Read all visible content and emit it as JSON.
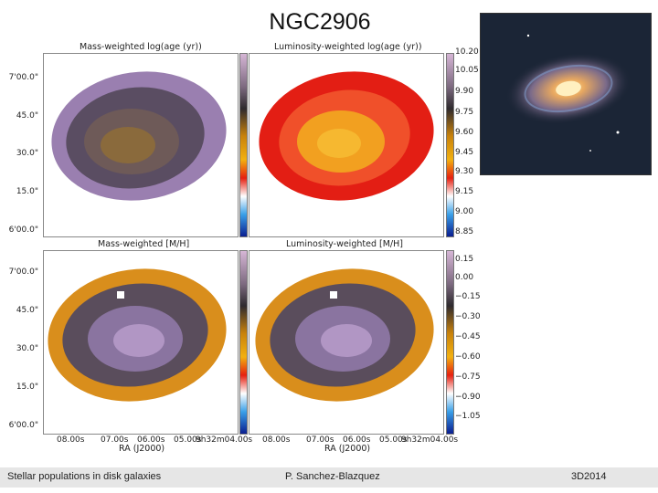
{
  "slide": {
    "title": "NGC2906"
  },
  "panels": {
    "top_left_title": "Mass-weighted log(age (yr))",
    "top_right_title": "Luminosity-weighted log(age (yr))",
    "bottom_left_title": "Mass-weighted [M/H]",
    "bottom_right_title": "Luminosity-weighted [M/H]"
  },
  "axes": {
    "dec_ticks": [
      "7'00.0\"",
      "45.0\"",
      "30.0\"",
      "15.0\"",
      "6'00.0\""
    ],
    "ra_ticks": [
      "08.00s",
      "07.00s",
      "06.00s",
      "05.00s",
      "9h32m04.00s"
    ],
    "ra_label": "RA (J2000)"
  },
  "colorbars": {
    "age_ticks": [
      "10.20",
      "10.05",
      "9.90",
      "9.75",
      "9.60",
      "9.45",
      "9.30",
      "9.15",
      "9.00",
      "8.85"
    ],
    "metallicity_ticks": [
      "0.15",
      "0.00",
      "−0.15",
      "−0.30",
      "−0.45",
      "−0.60",
      "−0.75",
      "−0.90",
      "−1.05"
    ],
    "colors": {
      "purple": "#9a7fb0",
      "dark": "#4a4052",
      "orange": "#d98e1c",
      "red": "#e31e14",
      "blue": "#0a2aa0"
    }
  },
  "footer": {
    "left": "Stellar populations in disk galaxies",
    "center": "P. Sanchez-Blazquez",
    "right": "3D2014"
  }
}
